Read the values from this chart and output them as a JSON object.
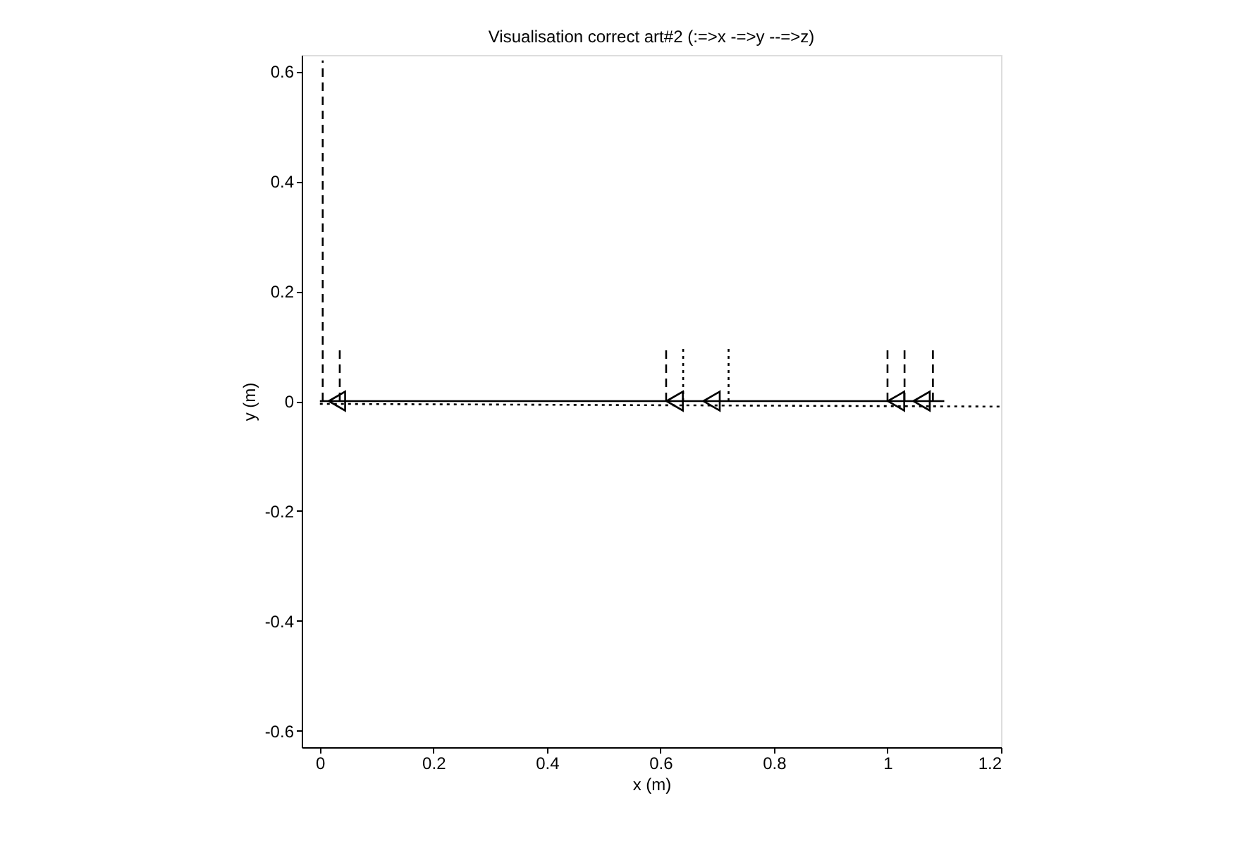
{
  "chart_data": {
    "type": "line",
    "title": "Visualisation correct art#2 (:=>x -=>y --=>z)",
    "xlabel": "x (m)",
    "ylabel": "y (m)",
    "xlim": [
      -0.032,
      1.2
    ],
    "ylim": [
      -0.63,
      0.63
    ],
    "xticks": [
      0,
      0.2,
      0.4,
      0.6,
      0.8,
      1,
      1.2
    ],
    "yticks": [
      -0.6,
      -0.4,
      -0.2,
      0,
      0.2,
      0.4,
      0.6
    ],
    "grid": false,
    "series": [
      {
        "color": "#000000",
        "line_style": "solid",
        "x": [
          0,
          1.1
        ],
        "values": [
          0,
          0
        ]
      },
      {
        "color": "#000000",
        "line_style": "dotted",
        "x": [
          0,
          1.2
        ],
        "values": [
          -0.005,
          -0.01
        ]
      },
      {
        "color": "#000000",
        "line_style": "dashed",
        "x": [
          0.005,
          0.005
        ],
        "values": [
          0,
          0.62
        ]
      },
      {
        "color": "#000000",
        "line_style": "dashed",
        "x": [
          0.035,
          0.035
        ],
        "values": [
          0,
          0.1
        ]
      },
      {
        "color": "#000000",
        "line_style": "dashed",
        "x": [
          0.61,
          0.61
        ],
        "values": [
          0,
          0.1
        ]
      },
      {
        "color": "#000000",
        "line_style": "dotted",
        "x": [
          0.64,
          0.64
        ],
        "values": [
          0,
          0.1
        ]
      },
      {
        "color": "#000000",
        "line_style": "dotted",
        "x": [
          0.72,
          0.72
        ],
        "values": [
          0,
          0.1
        ]
      },
      {
        "color": "#000000",
        "line_style": "dashed",
        "x": [
          1.0,
          1.0
        ],
        "values": [
          0,
          0.1
        ]
      },
      {
        "color": "#000000",
        "line_style": "dashed",
        "x": [
          1.03,
          1.03
        ],
        "values": [
          0,
          0.1
        ]
      },
      {
        "color": "#000000",
        "line_style": "dashed",
        "x": [
          1.08,
          1.08
        ],
        "values": [
          0,
          0.1
        ]
      },
      {
        "type": "scatter",
        "marker": "triangle",
        "color": "#000000",
        "x": [
          0.03,
          0.625,
          0.69,
          1.015,
          1.06
        ],
        "values": [
          0,
          0,
          0,
          0,
          0
        ]
      }
    ]
  }
}
